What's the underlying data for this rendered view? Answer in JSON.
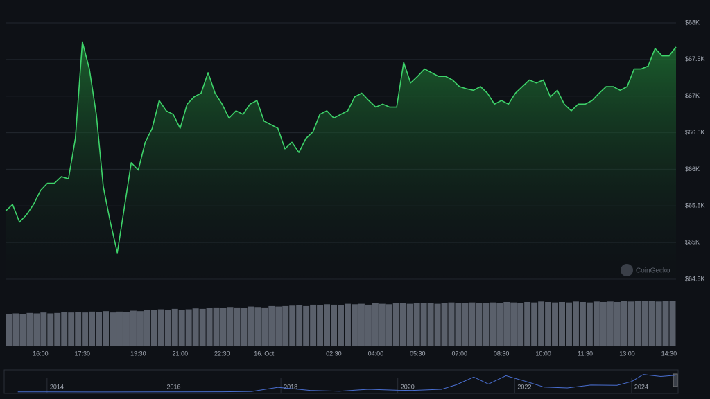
{
  "chart_data": [
    {
      "type": "line",
      "name": "price",
      "color": "#3ed36a",
      "watermark": "CoinGecko",
      "grid": true,
      "categories": [
        null,
        null,
        null,
        null,
        null,
        "16:00",
        null,
        null,
        null,
        null,
        null,
        "17:30",
        null,
        null,
        null,
        null,
        null,
        null,
        null,
        "19:30",
        null,
        null,
        null,
        null,
        null,
        "21:00",
        null,
        null,
        null,
        null,
        null,
        "22:30",
        null,
        null,
        null,
        null,
        null,
        "16. Oct",
        null,
        null,
        null,
        null,
        null,
        null,
        null,
        null,
        null,
        "02:30",
        null,
        null,
        null,
        null,
        null,
        "04:00",
        null,
        null,
        null,
        null,
        null,
        "05:30",
        null,
        null,
        null,
        null,
        null,
        "07:00",
        null,
        null,
        null,
        null,
        null,
        "08:30",
        null,
        null,
        null,
        null,
        null,
        "10:00",
        null,
        null,
        null,
        null,
        null,
        "11:30",
        null,
        null,
        null,
        null,
        null,
        "13:00",
        null,
        null,
        null,
        null,
        null,
        "14:30",
        null
      ],
      "values": [
        65430,
        65520,
        65280,
        65380,
        65520,
        65710,
        65810,
        65810,
        65900,
        65870,
        66420,
        67740,
        67370,
        66750,
        65760,
        65280,
        64860,
        65470,
        66090,
        65990,
        66370,
        66560,
        66940,
        66800,
        66750,
        66560,
        66890,
        66990,
        67040,
        67320,
        67040,
        66890,
        66700,
        66800,
        66750,
        66890,
        66940,
        66660,
        66610,
        66560,
        66280,
        66370,
        66230,
        66420,
        66510,
        66750,
        66800,
        66700,
        66750,
        66800,
        66990,
        67040,
        66940,
        66850,
        66890,
        66850,
        66850,
        67460,
        67180,
        67270,
        67370,
        67320,
        67270,
        67270,
        67220,
        67130,
        67100,
        67080,
        67130,
        67040,
        66890,
        66940,
        66890,
        67040,
        67130,
        67220,
        67180,
        67220,
        66990,
        67080,
        66890,
        66800,
        66890,
        66890,
        66940,
        67040,
        67130,
        67130,
        67080,
        67130,
        67370,
        67370,
        67410,
        67650,
        67550,
        67550,
        67670
      ],
      "ylim": [
        64500,
        68000
      ],
      "yticks": [
        {
          "value": 64500,
          "label": "$64.5K"
        },
        {
          "value": 65000,
          "label": "$65K"
        },
        {
          "value": 65500,
          "label": "$65.5K"
        },
        {
          "value": 66000,
          "label": "$66K"
        },
        {
          "value": 66500,
          "label": "$66.5K"
        },
        {
          "value": 67000,
          "label": "$67K"
        },
        {
          "value": 67500,
          "label": "$67.5K"
        },
        {
          "value": 68000,
          "label": "$68K"
        }
      ]
    },
    {
      "type": "bar",
      "name": "volume",
      "color": "#5a606b",
      "values": [
        70,
        72,
        71,
        73,
        72,
        74,
        72,
        73,
        75,
        74,
        75,
        74,
        76,
        75,
        77,
        74,
        76,
        75,
        78,
        77,
        80,
        79,
        81,
        80,
        82,
        79,
        81,
        83,
        82,
        84,
        85,
        84,
        86,
        85,
        84,
        87,
        86,
        85,
        88,
        87,
        88,
        89,
        90,
        88,
        91,
        90,
        92,
        91,
        90,
        93,
        92,
        93,
        91,
        94,
        93,
        92,
        94,
        95,
        93,
        94,
        95,
        94,
        93,
        95,
        96,
        94,
        95,
        96,
        94,
        95,
        96,
        95,
        97,
        96,
        95,
        97,
        96,
        98,
        97,
        96,
        97,
        96,
        98,
        97,
        96,
        98,
        97,
        98,
        97,
        99,
        98,
        99,
        100,
        99,
        98,
        100,
        99
      ]
    },
    {
      "type": "navigator",
      "name": "history",
      "color": "#4a6fd1",
      "x": [
        2013.5,
        2014,
        2015,
        2016,
        2017,
        2017.5,
        2017.95,
        2018.5,
        2019,
        2019.5,
        2020,
        2020.25,
        2020.75,
        2021,
        2021.3,
        2021.55,
        2021.85,
        2022.2,
        2022.5,
        2022.9,
        2023.3,
        2023.75,
        2024,
        2024.2,
        2024.5,
        2024.75
      ],
      "values": [
        500,
        800,
        250,
        430,
        1000,
        2500,
        19000,
        6500,
        3700,
        11000,
        7200,
        6500,
        11000,
        29000,
        60000,
        32000,
        65000,
        42000,
        20000,
        16500,
        28000,
        27000,
        42000,
        70000,
        62000,
        67000
      ],
      "xlim": [
        2013.29,
        2024.76
      ],
      "xticks": [
        2014,
        2016,
        2018,
        2020,
        2022,
        2024
      ],
      "ylim": [
        0,
        80000
      ]
    }
  ]
}
